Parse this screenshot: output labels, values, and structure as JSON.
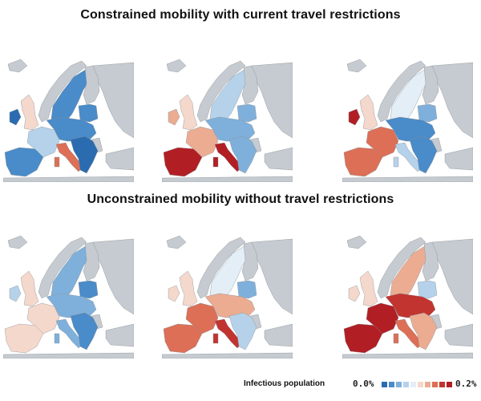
{
  "titles": {
    "constrained": "Constrained  mobility with current travel restrictions",
    "unconstrained": "Unconstrained  mobility without travel restrictions"
  },
  "legend": {
    "title": "Infectious population",
    "min_label": "0.0%",
    "max_label": "0.2%",
    "swatches": [
      "#2b6cb0",
      "#4a8bc9",
      "#7fb0db",
      "#b5d2ea",
      "#e4eef7",
      "#f4d8cc",
      "#ebac92",
      "#dc6f56",
      "#c2342f",
      "#b11f24"
    ]
  },
  "colors": {
    "land_outside": "#c5cbd0",
    "sea": "#ffffff",
    "border": "#8a8f94"
  },
  "maps": [
    {
      "row": "constrained",
      "col": 1,
      "regions": {
        "iberia": 1,
        "france": 3,
        "ireland": 0,
        "uk": 5,
        "italy": 7,
        "central": 1,
        "balkans": 0,
        "scandinavia": 1,
        "baltics": 1
      }
    },
    {
      "row": "constrained",
      "col": 2,
      "regions": {
        "iberia": 9,
        "france": 6,
        "ireland": 6,
        "uk": 5,
        "italy": 9,
        "central": 2,
        "balkans": 2,
        "scandinavia": 3,
        "baltics": 2
      }
    },
    {
      "row": "constrained",
      "col": 3,
      "regions": {
        "iberia": 7,
        "france": 7,
        "ireland": 9,
        "uk": 5,
        "italy": 3,
        "central": 1,
        "balkans": 1,
        "scandinavia": 4,
        "baltics": 2
      }
    },
    {
      "row": "unconstrained",
      "col": 1,
      "regions": {
        "iberia": 5,
        "france": 5,
        "ireland": 3,
        "uk": 5,
        "italy": 2,
        "central": 2,
        "balkans": 1,
        "scandinavia": 2,
        "baltics": 1
      }
    },
    {
      "row": "unconstrained",
      "col": 2,
      "regions": {
        "iberia": 7,
        "france": 7,
        "ireland": 5,
        "uk": 5,
        "italy": 8,
        "central": 6,
        "balkans": 3,
        "scandinavia": 4,
        "baltics": 2
      }
    },
    {
      "row": "unconstrained",
      "col": 3,
      "regions": {
        "iberia": 9,
        "france": 9,
        "ireland": 5,
        "uk": 5,
        "italy": 7,
        "central": 8,
        "balkans": 6,
        "scandinavia": 6,
        "baltics": 3
      }
    }
  ]
}
